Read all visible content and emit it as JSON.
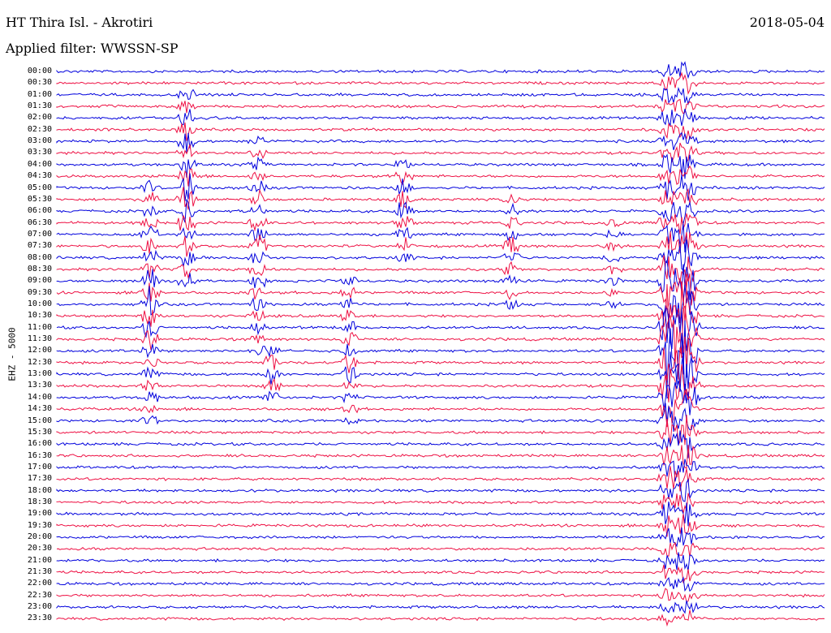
{
  "header": {
    "station": "HT Thira Isl. - Akrotiri",
    "filter": "Applied filter: WWSSN-SP",
    "date": "2018-05-04"
  },
  "channel": "EHZ - 5000",
  "colors": {
    "trace_a": "#0000dd",
    "trace_b": "#ee1144",
    "background": "#ffffff"
  },
  "time_labels": [
    "00:00",
    "00:30",
    "01:00",
    "01:30",
    "02:00",
    "02:30",
    "03:00",
    "03:30",
    "04:00",
    "04:30",
    "05:00",
    "05:30",
    "06:00",
    "06:30",
    "07:00",
    "07:30",
    "08:00",
    "08:30",
    "09:00",
    "09:30",
    "10:00",
    "10:30",
    "11:00",
    "11:30",
    "12:00",
    "12:30",
    "13:00",
    "13:30",
    "14:00",
    "14:30",
    "15:00",
    "15:30",
    "16:00",
    "16:30",
    "17:00",
    "17:30",
    "18:00",
    "18:30",
    "19:00",
    "19:30",
    "20:00",
    "20:30",
    "21:00",
    "21:30",
    "22:00",
    "22:30",
    "23:00",
    "23:30"
  ]
}
